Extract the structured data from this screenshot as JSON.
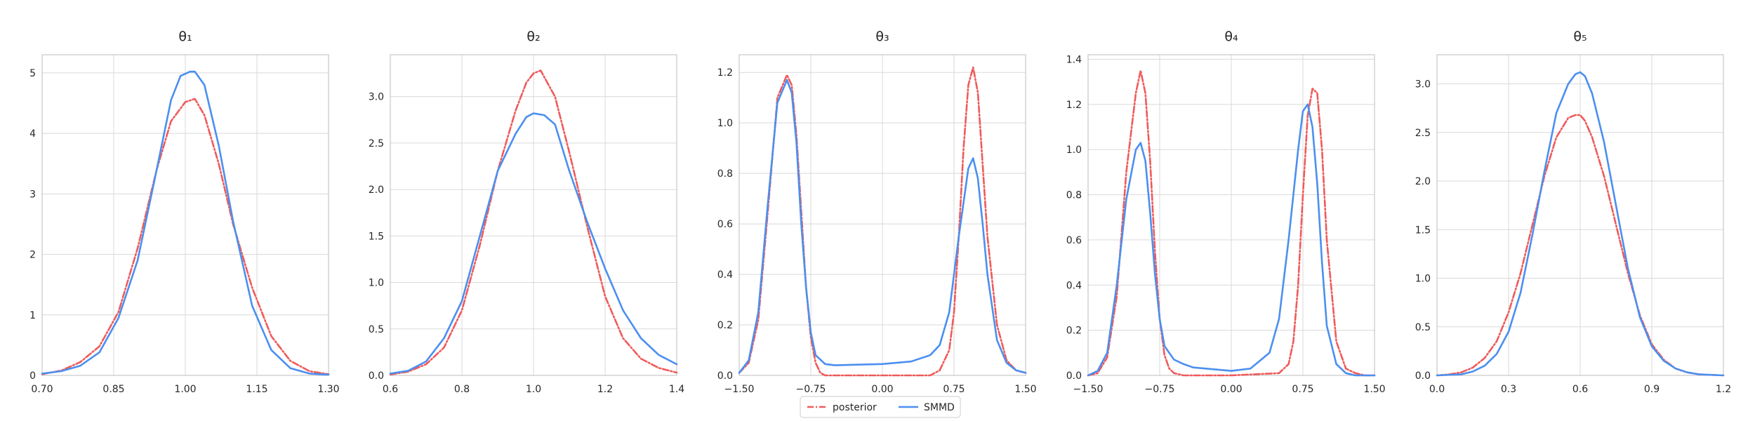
{
  "colors": {
    "posterior": "#f05a5a",
    "smmd": "#4b8ff0",
    "grid": "#d9d9d9",
    "axis": "#bdbdbd"
  },
  "legend": {
    "placement": "bottom-center",
    "items": [
      {
        "label": "posterior",
        "style": "dash-dot",
        "color": "#f05a5a"
      },
      {
        "label": "SMMD",
        "style": "solid",
        "color": "#4b8ff0"
      }
    ]
  },
  "chart_data": [
    {
      "type": "line",
      "title": "θ₁",
      "xlim": [
        0.7,
        1.3
      ],
      "ylim": [
        0,
        5.3
      ],
      "grid": true,
      "xticks": [
        0.7,
        0.85,
        1.0,
        1.15,
        1.3
      ],
      "xtick_labels": [
        "0.70",
        "0.85",
        "1.00",
        "1.15",
        "1.30"
      ],
      "yticks": [
        0,
        1,
        2,
        3,
        4,
        5
      ],
      "ytick_labels": [
        "0",
        "1",
        "2",
        "3",
        "4",
        "5"
      ],
      "series": [
        {
          "name": "posterior",
          "x": [
            0.7,
            0.74,
            0.78,
            0.82,
            0.86,
            0.9,
            0.94,
            0.97,
            1.0,
            1.02,
            1.04,
            1.07,
            1.1,
            1.14,
            1.18,
            1.22,
            1.26,
            1.3
          ],
          "y": [
            0.02,
            0.08,
            0.22,
            0.48,
            1.05,
            2.1,
            3.4,
            4.2,
            4.52,
            4.57,
            4.3,
            3.5,
            2.5,
            1.45,
            0.65,
            0.24,
            0.07,
            0.02
          ]
        },
        {
          "name": "SMMD",
          "x": [
            0.7,
            0.74,
            0.78,
            0.82,
            0.86,
            0.9,
            0.94,
            0.97,
            0.99,
            1.01,
            1.02,
            1.04,
            1.07,
            1.1,
            1.14,
            1.18,
            1.22,
            1.26,
            1.3
          ],
          "y": [
            0.03,
            0.07,
            0.16,
            0.38,
            0.95,
            1.9,
            3.4,
            4.55,
            4.95,
            5.02,
            5.02,
            4.8,
            3.8,
            2.55,
            1.15,
            0.42,
            0.12,
            0.03,
            0.01
          ]
        }
      ]
    },
    {
      "type": "line",
      "title": "θ₂",
      "xlim": [
        0.6,
        1.4
      ],
      "ylim": [
        0,
        3.45
      ],
      "grid": true,
      "xticks": [
        0.6,
        0.8,
        1.0,
        1.2,
        1.4
      ],
      "xtick_labels": [
        "0.6",
        "0.8",
        "1.0",
        "1.2",
        "1.4"
      ],
      "yticks": [
        0,
        0.5,
        1.0,
        1.5,
        2.0,
        2.5,
        3.0
      ],
      "ytick_labels": [
        "0.0",
        "0.5",
        "1.0",
        "1.5",
        "2.0",
        "2.5",
        "3.0"
      ],
      "series": [
        {
          "name": "posterior",
          "x": [
            0.6,
            0.65,
            0.7,
            0.75,
            0.8,
            0.85,
            0.9,
            0.95,
            0.98,
            1.0,
            1.02,
            1.06,
            1.1,
            1.15,
            1.2,
            1.25,
            1.3,
            1.35,
            1.4
          ],
          "y": [
            0.01,
            0.04,
            0.12,
            0.3,
            0.7,
            1.4,
            2.2,
            2.85,
            3.15,
            3.25,
            3.28,
            3.0,
            2.4,
            1.6,
            0.85,
            0.4,
            0.18,
            0.08,
            0.03
          ]
        },
        {
          "name": "SMMD",
          "x": [
            0.6,
            0.65,
            0.7,
            0.75,
            0.8,
            0.85,
            0.9,
            0.95,
            0.98,
            1.0,
            1.03,
            1.06,
            1.1,
            1.15,
            1.2,
            1.25,
            1.3,
            1.35,
            1.4
          ],
          "y": [
            0.02,
            0.05,
            0.15,
            0.4,
            0.8,
            1.5,
            2.2,
            2.6,
            2.78,
            2.82,
            2.8,
            2.7,
            2.2,
            1.65,
            1.15,
            0.7,
            0.4,
            0.22,
            0.12
          ]
        }
      ]
    },
    {
      "type": "line",
      "title": "θ₃",
      "xlim": [
        -1.5,
        1.5
      ],
      "ylim": [
        0,
        1.27
      ],
      "grid": true,
      "xticks": [
        -1.5,
        -0.75,
        0,
        0.75,
        1.5
      ],
      "xtick_labels": [
        "−1.50",
        "−0.75",
        "0.00",
        "0.75",
        "1.50"
      ],
      "yticks": [
        0,
        0.2,
        0.4,
        0.6,
        0.8,
        1.0,
        1.2
      ],
      "ytick_labels": [
        "0.0",
        "0.2",
        "0.4",
        "0.6",
        "0.8",
        "1.0",
        "1.2"
      ],
      "series": [
        {
          "name": "posterior",
          "x": [
            -1.5,
            -1.4,
            -1.3,
            -1.2,
            -1.1,
            -1.0,
            -0.95,
            -0.9,
            -0.85,
            -0.8,
            -0.75,
            -0.7,
            -0.65,
            -0.6,
            -0.5,
            0.0,
            0.5,
            0.6,
            0.7,
            0.75,
            0.8,
            0.85,
            0.9,
            0.95,
            1.0,
            1.1,
            1.2,
            1.3,
            1.4,
            1.5
          ],
          "y": [
            0.01,
            0.05,
            0.22,
            0.65,
            1.1,
            1.19,
            1.15,
            0.95,
            0.65,
            0.35,
            0.15,
            0.05,
            0.01,
            0.0,
            0.0,
            0.0,
            0.0,
            0.02,
            0.1,
            0.25,
            0.55,
            0.9,
            1.15,
            1.22,
            1.12,
            0.55,
            0.2,
            0.06,
            0.02,
            0.01
          ]
        },
        {
          "name": "SMMD",
          "x": [
            -1.5,
            -1.4,
            -1.3,
            -1.2,
            -1.1,
            -1.0,
            -0.95,
            -0.9,
            -0.85,
            -0.8,
            -0.75,
            -0.7,
            -0.6,
            -0.5,
            0.0,
            0.3,
            0.5,
            0.6,
            0.7,
            0.8,
            0.9,
            0.95,
            1.0,
            1.05,
            1.1,
            1.2,
            1.3,
            1.4,
            1.5
          ],
          "y": [
            0.01,
            0.06,
            0.25,
            0.68,
            1.08,
            1.17,
            1.12,
            0.92,
            0.6,
            0.35,
            0.17,
            0.08,
            0.045,
            0.04,
            0.045,
            0.055,
            0.08,
            0.12,
            0.25,
            0.55,
            0.82,
            0.86,
            0.78,
            0.6,
            0.4,
            0.14,
            0.05,
            0.02,
            0.01
          ]
        }
      ]
    },
    {
      "type": "line",
      "title": "θ₄",
      "xlim": [
        -1.5,
        1.5
      ],
      "ylim": [
        0,
        1.42
      ],
      "grid": true,
      "xticks": [
        -1.5,
        -0.75,
        0,
        0.75,
        1.5
      ],
      "xtick_labels": [
        "−1.50",
        "−0.75",
        "0.00",
        "0.75",
        "1.50"
      ],
      "yticks": [
        0,
        0.2,
        0.4,
        0.6,
        0.8,
        1.0,
        1.2,
        1.4
      ],
      "ytick_labels": [
        "0.0",
        "0.2",
        "0.4",
        "0.6",
        "0.8",
        "1.0",
        "1.2",
        "1.4"
      ],
      "series": [
        {
          "name": "posterior",
          "x": [
            -1.5,
            -1.4,
            -1.3,
            -1.2,
            -1.1,
            -1.0,
            -0.95,
            -0.9,
            -0.85,
            -0.8,
            -0.75,
            -0.7,
            -0.65,
            -0.6,
            -0.5,
            0.0,
            0.5,
            0.6,
            0.65,
            0.7,
            0.75,
            0.8,
            0.85,
            0.9,
            0.95,
            1.0,
            1.1,
            1.2,
            1.3,
            1.4,
            1.5
          ],
          "y": [
            0.0,
            0.01,
            0.08,
            0.35,
            0.9,
            1.25,
            1.35,
            1.25,
            0.95,
            0.55,
            0.25,
            0.09,
            0.03,
            0.01,
            0.0,
            0.0,
            0.01,
            0.05,
            0.15,
            0.4,
            0.8,
            1.15,
            1.27,
            1.25,
            1.0,
            0.6,
            0.15,
            0.03,
            0.01,
            0.0,
            0.0
          ]
        },
        {
          "name": "SMMD",
          "x": [
            -1.5,
            -1.4,
            -1.3,
            -1.2,
            -1.1,
            -1.0,
            -0.95,
            -0.9,
            -0.85,
            -0.8,
            -0.75,
            -0.7,
            -0.6,
            -0.5,
            -0.4,
            0.0,
            0.2,
            0.4,
            0.5,
            0.6,
            0.7,
            0.75,
            0.8,
            0.85,
            0.9,
            0.95,
            1.0,
            1.1,
            1.2,
            1.3,
            1.4,
            1.5
          ],
          "y": [
            0.0,
            0.02,
            0.1,
            0.4,
            0.78,
            1.0,
            1.03,
            0.95,
            0.72,
            0.45,
            0.25,
            0.13,
            0.07,
            0.05,
            0.035,
            0.02,
            0.03,
            0.1,
            0.25,
            0.6,
            1.0,
            1.17,
            1.2,
            1.1,
            0.85,
            0.5,
            0.22,
            0.05,
            0.01,
            0.0,
            0.0,
            0.0
          ]
        }
      ]
    },
    {
      "type": "line",
      "title": "θ₅",
      "xlim": [
        0,
        1.2
      ],
      "ylim": [
        0,
        3.3
      ],
      "grid": true,
      "xticks": [
        0,
        0.3,
        0.6,
        0.9,
        1.2
      ],
      "xtick_labels": [
        "0.0",
        "0.3",
        "0.6",
        "0.9",
        "1.2"
      ],
      "yticks": [
        0,
        0.5,
        1.0,
        1.5,
        2.0,
        2.5,
        3.0
      ],
      "ytick_labels": [
        "0.0",
        "0.5",
        "1.0",
        "1.5",
        "2.0",
        "2.5",
        "3.0"
      ],
      "series": [
        {
          "name": "posterior",
          "x": [
            0.0,
            0.05,
            0.1,
            0.15,
            0.2,
            0.25,
            0.3,
            0.35,
            0.4,
            0.45,
            0.5,
            0.55,
            0.58,
            0.6,
            0.62,
            0.65,
            0.7,
            0.75,
            0.8,
            0.85,
            0.9,
            0.95,
            1.0,
            1.05,
            1.1,
            1.2
          ],
          "y": [
            0.0,
            0.01,
            0.03,
            0.08,
            0.18,
            0.35,
            0.65,
            1.05,
            1.55,
            2.05,
            2.45,
            2.65,
            2.68,
            2.68,
            2.62,
            2.45,
            2.05,
            1.55,
            1.05,
            0.62,
            0.32,
            0.16,
            0.07,
            0.03,
            0.01,
            0.0
          ]
        },
        {
          "name": "SMMD",
          "x": [
            0.0,
            0.1,
            0.15,
            0.2,
            0.25,
            0.3,
            0.35,
            0.4,
            0.45,
            0.5,
            0.55,
            0.58,
            0.6,
            0.62,
            0.65,
            0.7,
            0.75,
            0.8,
            0.85,
            0.9,
            0.95,
            1.0,
            1.05,
            1.1,
            1.2
          ],
          "y": [
            0.0,
            0.01,
            0.04,
            0.1,
            0.22,
            0.45,
            0.85,
            1.45,
            2.1,
            2.7,
            3.0,
            3.1,
            3.12,
            3.08,
            2.9,
            2.4,
            1.75,
            1.1,
            0.6,
            0.3,
            0.15,
            0.07,
            0.03,
            0.01,
            0.0
          ]
        }
      ]
    }
  ]
}
